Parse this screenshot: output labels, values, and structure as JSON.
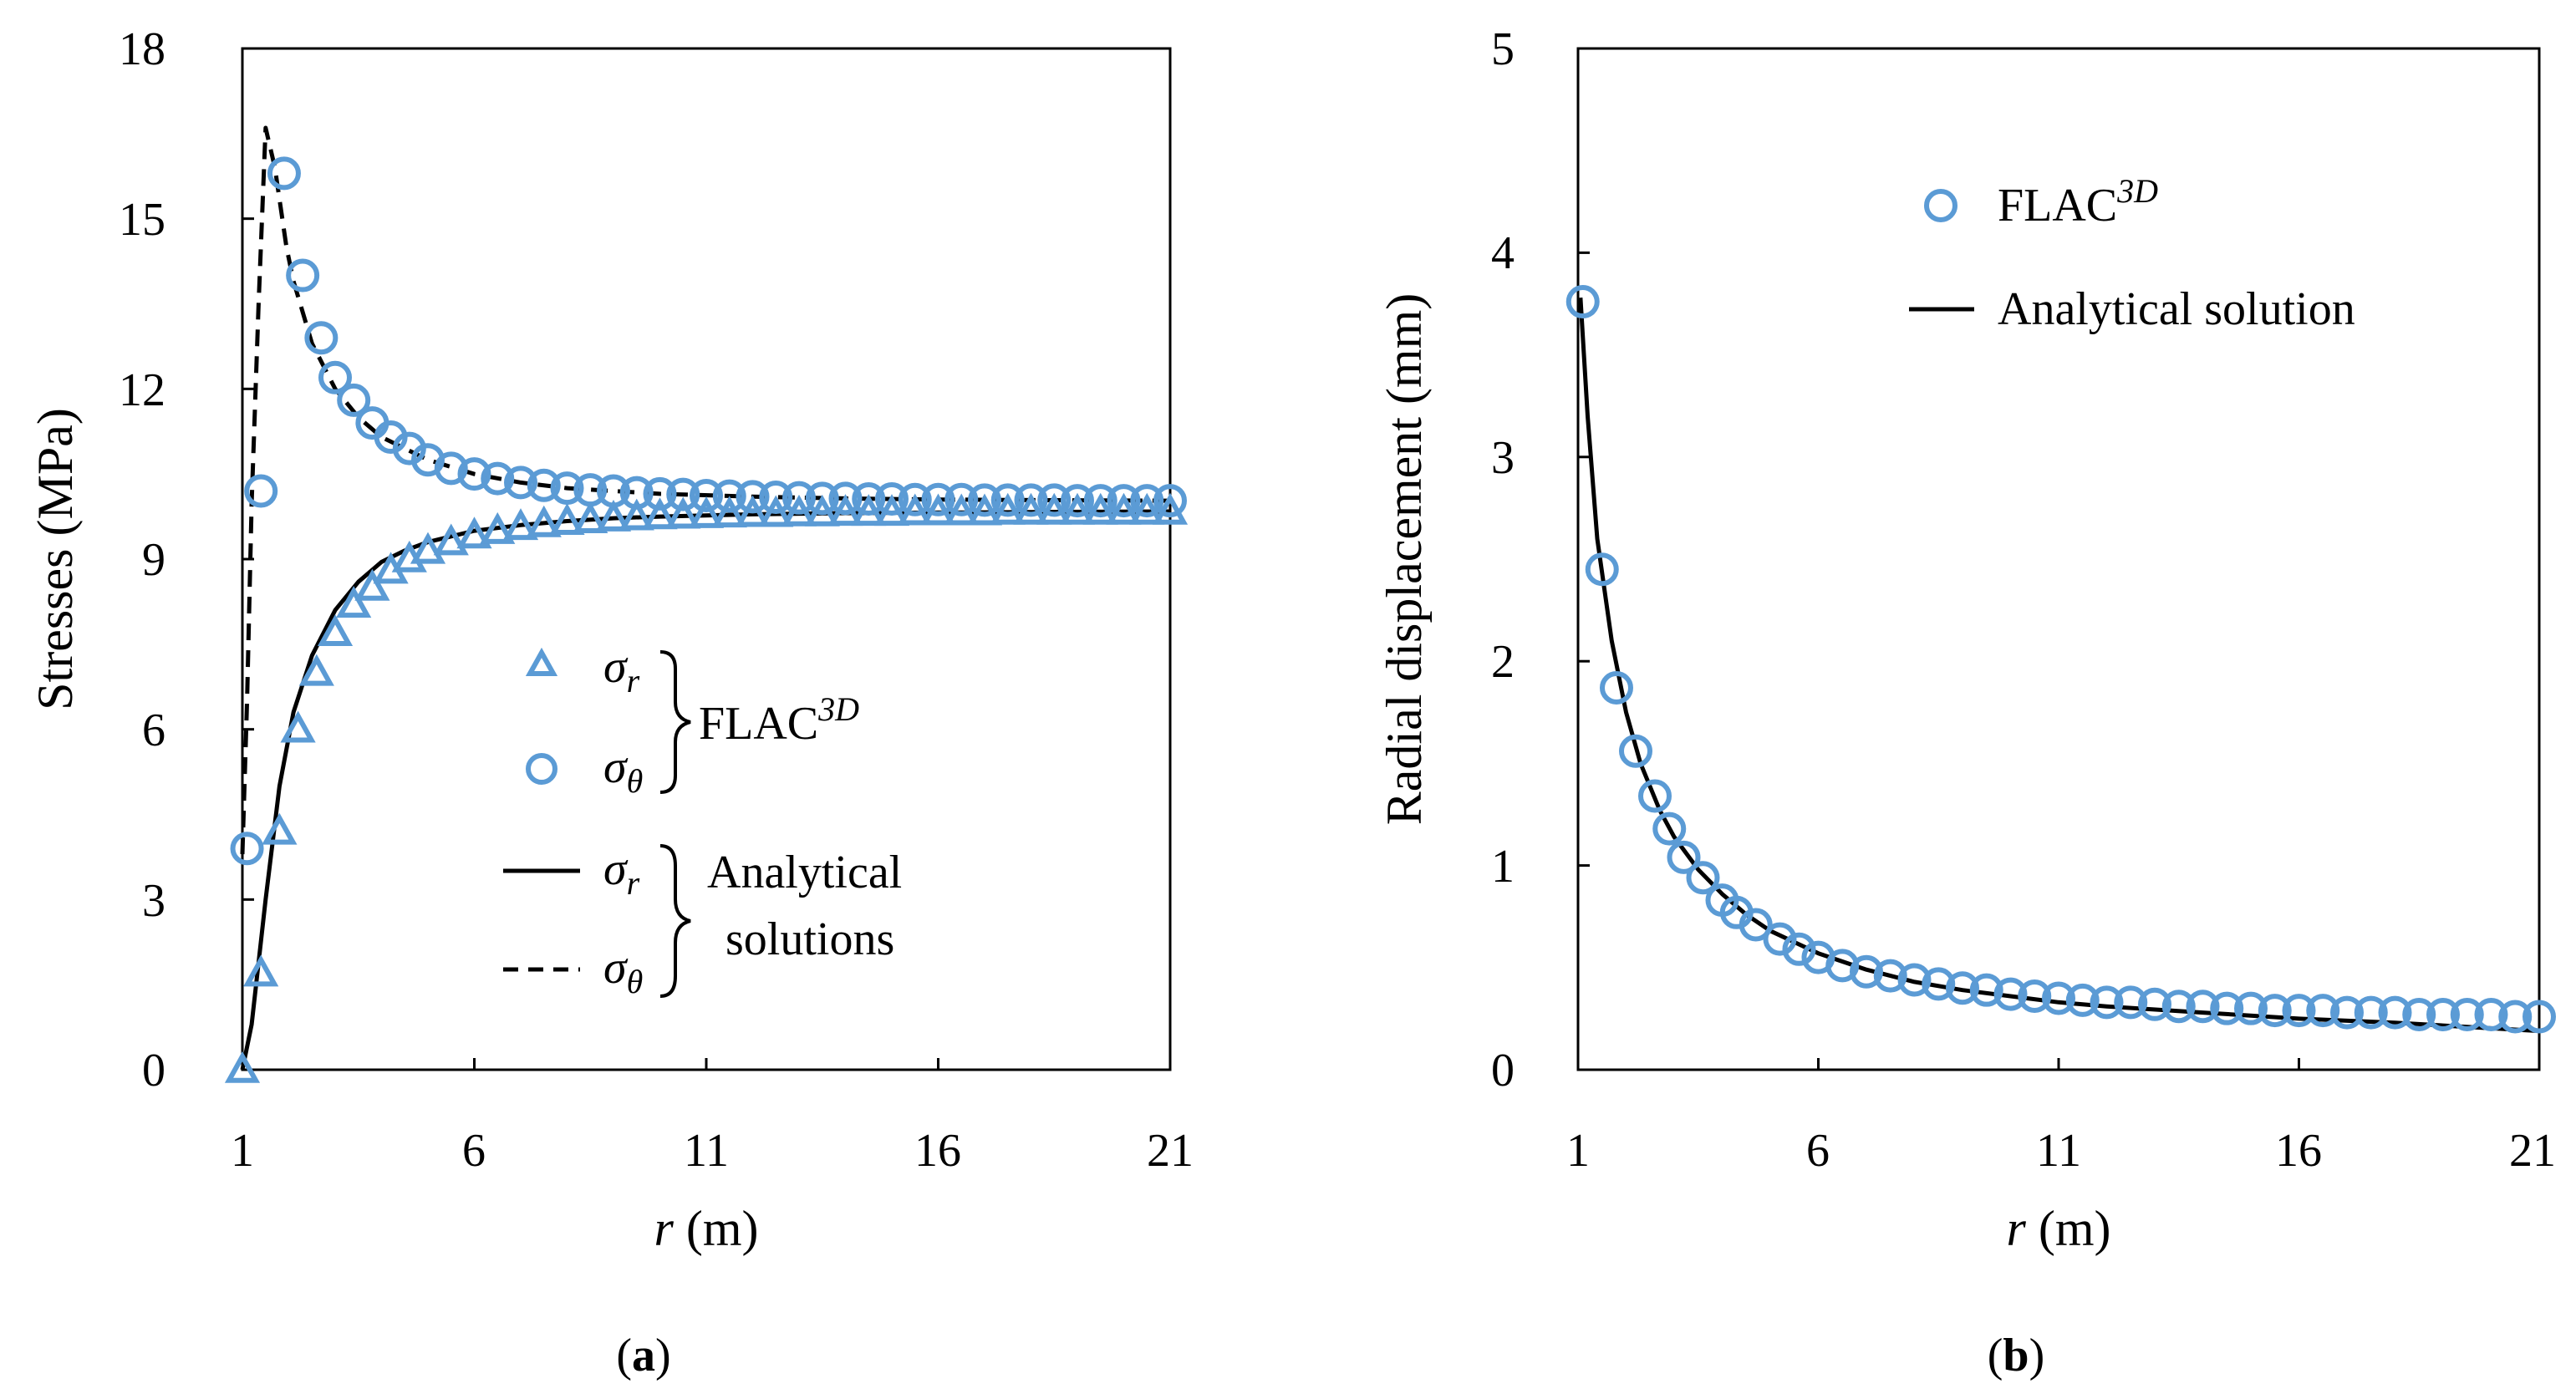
{
  "colors": {
    "marker": "#5B9BD5",
    "line": "#000000",
    "axis": "#000000",
    "background": "#ffffff"
  },
  "chart_data": [
    {
      "id": "a",
      "type": "line",
      "panel_label": "a",
      "ylabel": "Stresses (MPa)",
      "xlabel_var": "r",
      "xlabel_unit": " (m)",
      "xlim": [
        1,
        21
      ],
      "ylim": [
        0,
        18
      ],
      "xticks": [
        "1",
        "6",
        "11",
        "16",
        "21"
      ],
      "yticks": [
        "0",
        "3",
        "6",
        "9",
        "12",
        "15",
        "18"
      ],
      "series": [
        {
          "name": "σr FLAC3D",
          "kind": "markers",
          "marker": "triangle",
          "x": [
            1.0,
            1.4,
            1.8,
            2.2,
            2.6,
            3.0,
            3.4,
            3.8,
            4.2,
            4.6,
            5.0,
            5.5,
            6.0,
            6.5,
            7.0,
            7.5,
            8.0,
            8.5,
            9.0,
            9.5,
            10.0,
            10.5,
            11.0,
            11.5,
            12.0,
            12.5,
            13.0,
            13.5,
            14.0,
            14.5,
            15.0,
            15.5,
            16.0,
            16.5,
            17.0,
            17.5,
            18.0,
            18.5,
            19.0,
            19.5,
            20.0,
            20.5,
            21.0
          ],
          "y": [
            0.0,
            1.7,
            4.2,
            6.0,
            7.0,
            7.7,
            8.2,
            8.5,
            8.8,
            9.0,
            9.15,
            9.3,
            9.42,
            9.5,
            9.57,
            9.62,
            9.66,
            9.69,
            9.72,
            9.74,
            9.76,
            9.77,
            9.78,
            9.79,
            9.8,
            9.8,
            9.81,
            9.81,
            9.82,
            9.82,
            9.82,
            9.83,
            9.83,
            9.83,
            9.83,
            9.84,
            9.84,
            9.84,
            9.84,
            9.84,
            9.84,
            9.84,
            9.84
          ]
        },
        {
          "name": "σθ FLAC3D",
          "kind": "markers",
          "marker": "circle",
          "x": [
            1.1,
            1.4,
            1.9,
            2.3,
            2.7,
            3.0,
            3.4,
            3.8,
            4.2,
            4.6,
            5.0,
            5.5,
            6.0,
            6.5,
            7.0,
            7.5,
            8.0,
            8.5,
            9.0,
            9.5,
            10.0,
            10.5,
            11.0,
            11.5,
            12.0,
            12.5,
            13.0,
            13.5,
            14.0,
            14.5,
            15.0,
            15.5,
            16.0,
            16.5,
            17.0,
            17.5,
            18.0,
            18.5,
            19.0,
            19.5,
            20.0,
            20.5,
            21.0
          ],
          "y": [
            3.9,
            10.2,
            15.8,
            14.0,
            12.9,
            12.2,
            11.8,
            11.4,
            11.15,
            10.95,
            10.75,
            10.6,
            10.5,
            10.42,
            10.35,
            10.3,
            10.25,
            10.22,
            10.2,
            10.17,
            10.15,
            10.14,
            10.12,
            10.11,
            10.1,
            10.09,
            10.08,
            10.07,
            10.07,
            10.06,
            10.06,
            10.05,
            10.05,
            10.05,
            10.04,
            10.04,
            10.04,
            10.04,
            10.03,
            10.03,
            10.03,
            10.03,
            10.03
          ]
        },
        {
          "name": "σr Analytical",
          "kind": "line",
          "dash": "solid",
          "x": [
            1.0,
            1.2,
            1.5,
            1.8,
            2.1,
            2.5,
            3.0,
            3.5,
            4.0,
            4.5,
            5.0,
            6.0,
            7.0,
            8.0,
            9.0,
            10.0,
            12.0,
            14.0,
            16.0,
            18.0,
            21.0
          ],
          "y": [
            0.0,
            0.8,
            3.0,
            5.0,
            6.3,
            7.3,
            8.1,
            8.6,
            8.95,
            9.15,
            9.3,
            9.5,
            9.6,
            9.67,
            9.72,
            9.75,
            9.79,
            9.81,
            9.82,
            9.83,
            9.84
          ]
        },
        {
          "name": "σθ Analytical",
          "kind": "line",
          "dash": "dashed",
          "x": [
            1.0,
            1.1,
            1.2,
            1.35,
            1.5,
            1.7,
            1.95,
            2.1,
            2.5,
            3.0,
            3.5,
            4.0,
            5.0,
            6.0,
            7.0,
            8.0,
            9.0,
            10.0,
            12.0,
            14.0,
            16.0,
            18.0,
            21.0
          ],
          "y": [
            3.8,
            6.5,
            10.0,
            13.5,
            16.6,
            15.9,
            14.5,
            13.9,
            12.8,
            12.0,
            11.5,
            11.15,
            10.75,
            10.5,
            10.35,
            10.25,
            10.2,
            10.15,
            10.1,
            10.07,
            10.05,
            10.04,
            10.03
          ]
        }
      ],
      "legend": {
        "placement": "center-right",
        "rows": [
          {
            "symbol": "triangle",
            "label": "σ",
            "sub": "r"
          },
          {
            "symbol": "circle",
            "label": "σ",
            "sub": "θ"
          },
          {
            "symbol": "solid",
            "label": "σ",
            "sub": "r"
          },
          {
            "symbol": "dashed",
            "label": "σ",
            "sub": "θ"
          }
        ],
        "group1_text": "FLAC",
        "group1_sup": "3D",
        "group2_line1": "Analytical",
        "group2_line2": "solutions"
      }
    },
    {
      "id": "b",
      "type": "line",
      "panel_label": "b",
      "ylabel": "Radial displacement (mm)",
      "xlabel_var": "r",
      "xlabel_unit": " (m)",
      "xlim": [
        1,
        21
      ],
      "ylim": [
        0,
        5
      ],
      "xticks": [
        "1",
        "6",
        "11",
        "16",
        "21"
      ],
      "yticks": [
        "0",
        "1",
        "2",
        "3",
        "4",
        "5"
      ],
      "series": [
        {
          "name": "FLAC3D",
          "kind": "markers",
          "marker": "circle",
          "x": [
            1.1,
            1.5,
            1.8,
            2.2,
            2.6,
            2.9,
            3.2,
            3.6,
            4.0,
            4.3,
            4.7,
            5.2,
            5.6,
            6.0,
            6.5,
            7.0,
            7.5,
            8.0,
            8.5,
            9.0,
            9.5,
            10.0,
            10.5,
            11.0,
            11.5,
            12.0,
            12.5,
            13.0,
            13.5,
            14.0,
            14.5,
            15.0,
            15.5,
            16.0,
            16.5,
            17.0,
            17.5,
            18.0,
            18.5,
            19.0,
            19.5,
            20.0,
            20.5,
            21.0
          ],
          "y": [
            3.76,
            2.45,
            1.87,
            1.56,
            1.34,
            1.18,
            1.04,
            0.94,
            0.83,
            0.77,
            0.71,
            0.64,
            0.59,
            0.55,
            0.51,
            0.48,
            0.46,
            0.44,
            0.42,
            0.4,
            0.39,
            0.37,
            0.36,
            0.35,
            0.34,
            0.33,
            0.33,
            0.32,
            0.31,
            0.31,
            0.3,
            0.3,
            0.29,
            0.29,
            0.29,
            0.28,
            0.28,
            0.28,
            0.27,
            0.27,
            0.27,
            0.27,
            0.26,
            0.26
          ]
        },
        {
          "name": "Analytical solution",
          "kind": "line",
          "dash": "solid",
          "x": [
            1.05,
            1.2,
            1.4,
            1.7,
            2.0,
            2.3,
            2.7,
            3.0,
            3.5,
            4.0,
            4.5,
            5.0,
            6.0,
            7.0,
            8.0,
            9.0,
            10.0,
            11.0,
            12.0,
            14.0,
            16.0,
            18.0,
            19.5,
            21.0
          ],
          "y": [
            3.78,
            3.2,
            2.6,
            2.1,
            1.75,
            1.5,
            1.27,
            1.14,
            0.98,
            0.86,
            0.76,
            0.68,
            0.57,
            0.49,
            0.43,
            0.39,
            0.36,
            0.33,
            0.31,
            0.28,
            0.25,
            0.23,
            0.21,
            0.19
          ]
        }
      ],
      "legend": {
        "placement": "top-right",
        "marker_text": "FLAC",
        "marker_sup": "3D",
        "line_text": "Analytical solution"
      }
    }
  ]
}
